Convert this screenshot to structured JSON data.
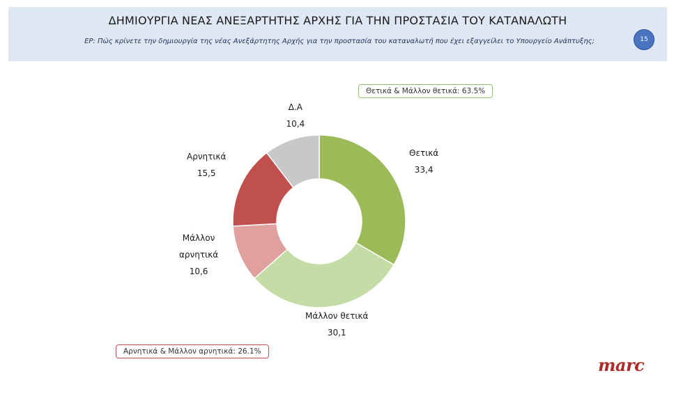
{
  "header": {
    "title": "ΔΗΜΙΟΥΡΓΙΑ ΝΕΑΣ ΑΝΕΞΑΡΤΗΤΗΣ ΑΡΧΗΣ ΓΙΑ ΤΗΝ ΠΡΟΣΤΑΣΙΑ ΤΟΥ ΚΑΤΑΝΑΛΩΤΗ",
    "question": "ΕΡ: Πώς κρίνετε την δημιουργία της νέας Ανεξάρτητης Αρχής για την προστασία του καταναλωτή που έχει εξαγγείλει το Υπουργείο Ανάπτυξης;",
    "page_number": "15"
  },
  "summary": {
    "positive": "Θετικά & Μάλλον θετικά: 63.5%",
    "negative": "Αρνητικά & Μάλλον αρνητικά: 26.1%"
  },
  "brand": {
    "logo_text": "marc",
    "logo_color": "#b02a28"
  },
  "chart_data": {
    "type": "pie",
    "variant": "donut",
    "title": "",
    "slices": [
      {
        "label": "Θετικά",
        "value": 33.4,
        "value_text": "33,4",
        "color": "#9bbb59"
      },
      {
        "label": "Μάλλον θετικά",
        "value": 30.1,
        "value_text": "30,1",
        "color": "#c4dca5"
      },
      {
        "label": "Μάλλον αρνητικά",
        "value": 10.6,
        "value_text": "10,6",
        "color": "#e0a09e"
      },
      {
        "label": "Αρνητικά",
        "value": 15.5,
        "value_text": "15,5",
        "color": "#c0504d"
      },
      {
        "label": "Δ.Α",
        "value": 10.4,
        "value_text": "10,4",
        "color": "#c8c8c8"
      }
    ]
  }
}
